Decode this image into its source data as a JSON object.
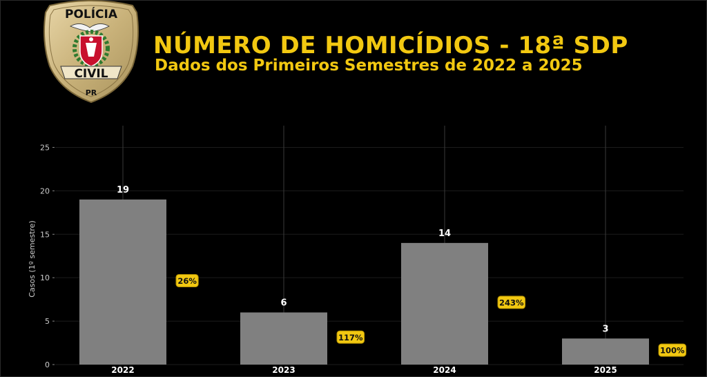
{
  "header": {
    "title": "NÚMERO DE HOMICÍDIOS - 18ª SDP",
    "subtitle": "Dados dos Primeiros Semestres de 2022 a 2025"
  },
  "logo": {
    "top_text": "POLÍCIA",
    "bottom_text": "CIVIL",
    "state": "PR",
    "icon": "police-badge-icon"
  },
  "colors": {
    "accent": "#f2c811",
    "bar": "#808080",
    "background": "#000000",
    "text": "#ffffff"
  },
  "chart_data": {
    "type": "bar",
    "categories": [
      "2022",
      "2023",
      "2024",
      "2025"
    ],
    "values": [
      19,
      6,
      14,
      3
    ],
    "percent_labels": [
      "26%",
      "117%",
      "243%",
      "100%"
    ],
    "title": "",
    "xlabel": "",
    "ylabel": "Casos (1º semestre)",
    "ylim": [
      0,
      27.5
    ],
    "yticks": [
      0,
      5,
      10,
      15,
      20,
      25
    ],
    "grid": true,
    "legend": "none"
  }
}
